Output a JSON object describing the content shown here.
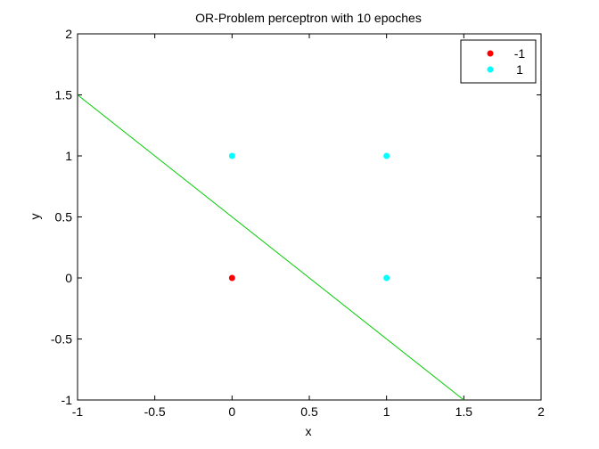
{
  "chart_data": {
    "type": "scatter",
    "title": "OR-Problem perceptron with 10 epoches",
    "xlabel": "x",
    "ylabel": "y",
    "xlim": [
      -1,
      2
    ],
    "ylim": [
      -1,
      2
    ],
    "xticks": [
      -1,
      -0.5,
      0,
      0.5,
      1,
      1.5,
      2
    ],
    "xtick_labels": [
      "-1",
      "-0.5",
      "0",
      "0.5",
      "1",
      "1.5",
      "2"
    ],
    "yticks": [
      -1,
      -0.5,
      0,
      0.5,
      1,
      1.5,
      2
    ],
    "ytick_labels": [
      "-1",
      "-0.5",
      "0",
      "0.5",
      "1",
      "1.5",
      "2"
    ],
    "grid": false,
    "legend_position": "top-right",
    "series": [
      {
        "name": "-1",
        "color": "#ff0000",
        "points": [
          [
            0,
            0
          ]
        ]
      },
      {
        "name": "1",
        "color": "#00ffff",
        "points": [
          [
            0,
            1
          ],
          [
            1,
            1
          ],
          [
            1,
            0
          ]
        ]
      }
    ],
    "decision_line": {
      "color": "#00cc00",
      "points": [
        [
          -1,
          1.5
        ],
        [
          1.5,
          -1
        ]
      ]
    }
  }
}
